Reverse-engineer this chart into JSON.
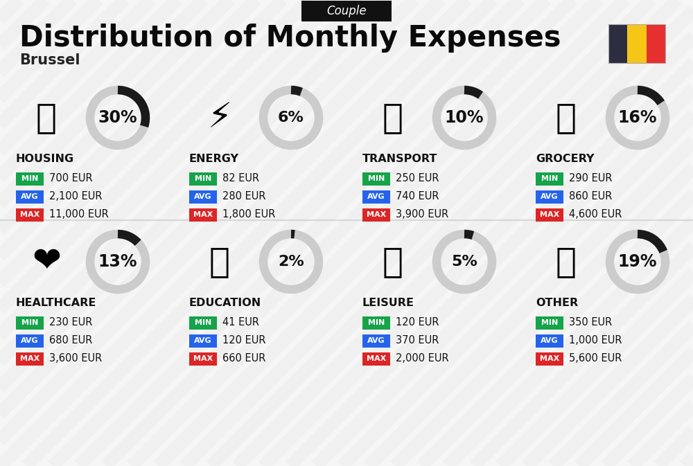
{
  "title": "Distribution of Monthly Expenses",
  "subtitle": "Brussel",
  "badge": "Couple",
  "bg_color": "#f2f2f2",
  "categories": [
    {
      "name": "HOUSING",
      "pct": 30,
      "min": "700 EUR",
      "avg": "2,100 EUR",
      "max": "11,000 EUR",
      "emoji": "🏗",
      "row": 0,
      "col": 0
    },
    {
      "name": "ENERGY",
      "pct": 6,
      "min": "82 EUR",
      "avg": "280 EUR",
      "max": "1,800 EUR",
      "emoji": "⚡",
      "row": 0,
      "col": 1
    },
    {
      "name": "TRANSPORT",
      "pct": 10,
      "min": "250 EUR",
      "avg": "740 EUR",
      "max": "3,900 EUR",
      "emoji": "🚌",
      "row": 0,
      "col": 2
    },
    {
      "name": "GROCERY",
      "pct": 16,
      "min": "290 EUR",
      "avg": "860 EUR",
      "max": "4,600 EUR",
      "emoji": "🛒",
      "row": 0,
      "col": 3
    },
    {
      "name": "HEALTHCARE",
      "pct": 13,
      "min": "230 EUR",
      "avg": "680 EUR",
      "max": "3,600 EUR",
      "emoji": "❤",
      "row": 1,
      "col": 0
    },
    {
      "name": "EDUCATION",
      "pct": 2,
      "min": "41 EUR",
      "avg": "120 EUR",
      "max": "660 EUR",
      "emoji": "🎓",
      "row": 1,
      "col": 1
    },
    {
      "name": "LEISURE",
      "pct": 5,
      "min": "120 EUR",
      "avg": "370 EUR",
      "max": "2,000 EUR",
      "emoji": "🛍",
      "row": 1,
      "col": 2
    },
    {
      "name": "OTHER",
      "pct": 19,
      "min": "350 EUR",
      "avg": "1,000 EUR",
      "max": "5,600 EUR",
      "emoji": "👛",
      "row": 1,
      "col": 3
    }
  ],
  "min_color": "#16a34a",
  "avg_color": "#2563eb",
  "max_color": "#dc2626",
  "value_text_color": "#111111",
  "category_text_color": "#111111",
  "donut_dark": "#1a1a1a",
  "donut_light": "#cccccc",
  "flag_colors": [
    "#2d2d42",
    "#f5c518",
    "#e63030"
  ],
  "badge_bg": "#111111",
  "badge_text": "#ffffff",
  "stripe_color": "#e0e0e0",
  "divider_color": "#cccccc"
}
